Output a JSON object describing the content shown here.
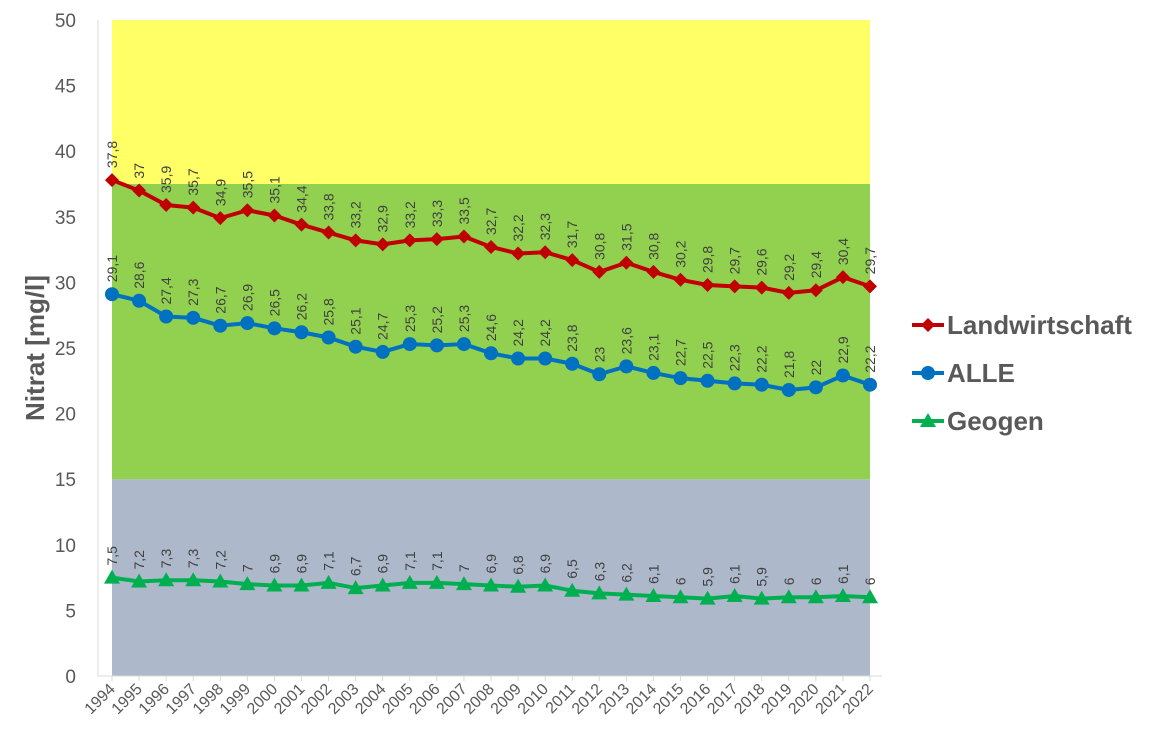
{
  "chart_data": {
    "type": "line",
    "ylabel": "Nitrat [mg/l]",
    "ylim": [
      0,
      50
    ],
    "yticks": [
      "0",
      "5",
      "10",
      "15",
      "20",
      "25",
      "30",
      "35",
      "40",
      "45",
      "50"
    ],
    "x": [
      "1994",
      "1995",
      "1996",
      "1997",
      "1998",
      "1999",
      "2000",
      "2001",
      "2002",
      "2003",
      "2004",
      "2005",
      "2006",
      "2007",
      "2008",
      "2009",
      "2010",
      "2011",
      "2012",
      "2013",
      "2014",
      "2015",
      "2016",
      "2017",
      "2018",
      "2019",
      "2020",
      "2021",
      "2022"
    ],
    "bands": [
      {
        "from": 0,
        "to": 15,
        "color": "#adb9ca"
      },
      {
        "from": 15,
        "to": 37.5,
        "color": "#92d050"
      },
      {
        "from": 37.5,
        "to": 50,
        "color": "#ffff66"
      }
    ],
    "legend_position": "right",
    "series": [
      {
        "name": "Landwirtschaft",
        "color": "#c00000",
        "marker": "diamond",
        "values": [
          37.8,
          37,
          35.9,
          35.7,
          34.9,
          35.5,
          35.1,
          34.4,
          33.8,
          33.2,
          32.9,
          33.2,
          33.3,
          33.5,
          32.7,
          32.2,
          32.3,
          31.7,
          30.8,
          31.5,
          30.8,
          30.2,
          29.8,
          29.7,
          29.6,
          29.2,
          29.4,
          30.4,
          29.7
        ],
        "labels": [
          "37,8",
          "37",
          "35,9",
          "35,7",
          "34,9",
          "35,5",
          "35,1",
          "34,4",
          "33,8",
          "33,2",
          "32,9",
          "33,2",
          "33,3",
          "33,5",
          "32,7",
          "32,2",
          "32,3",
          "31,7",
          "30,8",
          "31,5",
          "30,8",
          "30,2",
          "29,8",
          "29,7",
          "29,6",
          "29,2",
          "29,4",
          "30,4",
          "29,7"
        ]
      },
      {
        "name": "ALLE",
        "color": "#0070c0",
        "marker": "circle",
        "values": [
          29.1,
          28.6,
          27.4,
          27.3,
          26.7,
          26.9,
          26.5,
          26.2,
          25.8,
          25.1,
          24.7,
          25.3,
          25.2,
          25.3,
          24.6,
          24.2,
          24.2,
          23.8,
          23,
          23.6,
          23.1,
          22.7,
          22.5,
          22.3,
          22.2,
          21.8,
          22,
          22.9,
          22.2
        ],
        "labels": [
          "29,1",
          "28,6",
          "27,4",
          "27,3",
          "26,7",
          "26,9",
          "26,5",
          "26,2",
          "25,8",
          "25,1",
          "24,7",
          "25,3",
          "25,2",
          "25,3",
          "24,6",
          "24,2",
          "24,2",
          "23,8",
          "23",
          "23,6",
          "23,1",
          "22,7",
          "22,5",
          "22,3",
          "22,2",
          "21,8",
          "22",
          "22,9",
          "22,2"
        ]
      },
      {
        "name": "Geogen",
        "color": "#00b050",
        "marker": "triangle",
        "values": [
          7.5,
          7.2,
          7.3,
          7.3,
          7.2,
          7,
          6.9,
          6.9,
          7.1,
          6.7,
          6.9,
          7.1,
          7.1,
          7,
          6.9,
          6.8,
          6.9,
          6.5,
          6.3,
          6.2,
          6.1,
          6,
          5.9,
          6.1,
          5.9,
          6,
          6,
          6.1,
          6
        ],
        "labels": [
          "7,5",
          "7,2",
          "7,3",
          "7,3",
          "7,2",
          "7",
          "6,9",
          "6,9",
          "7,1",
          "6,7",
          "6,9",
          "7,1",
          "7,1",
          "7",
          "6,9",
          "6,8",
          "6,9",
          "6,5",
          "6,3",
          "6,2",
          "6,1",
          "6",
          "5,9",
          "6,1",
          "5,9",
          "6",
          "6",
          "6,1",
          "6"
        ]
      }
    ]
  }
}
